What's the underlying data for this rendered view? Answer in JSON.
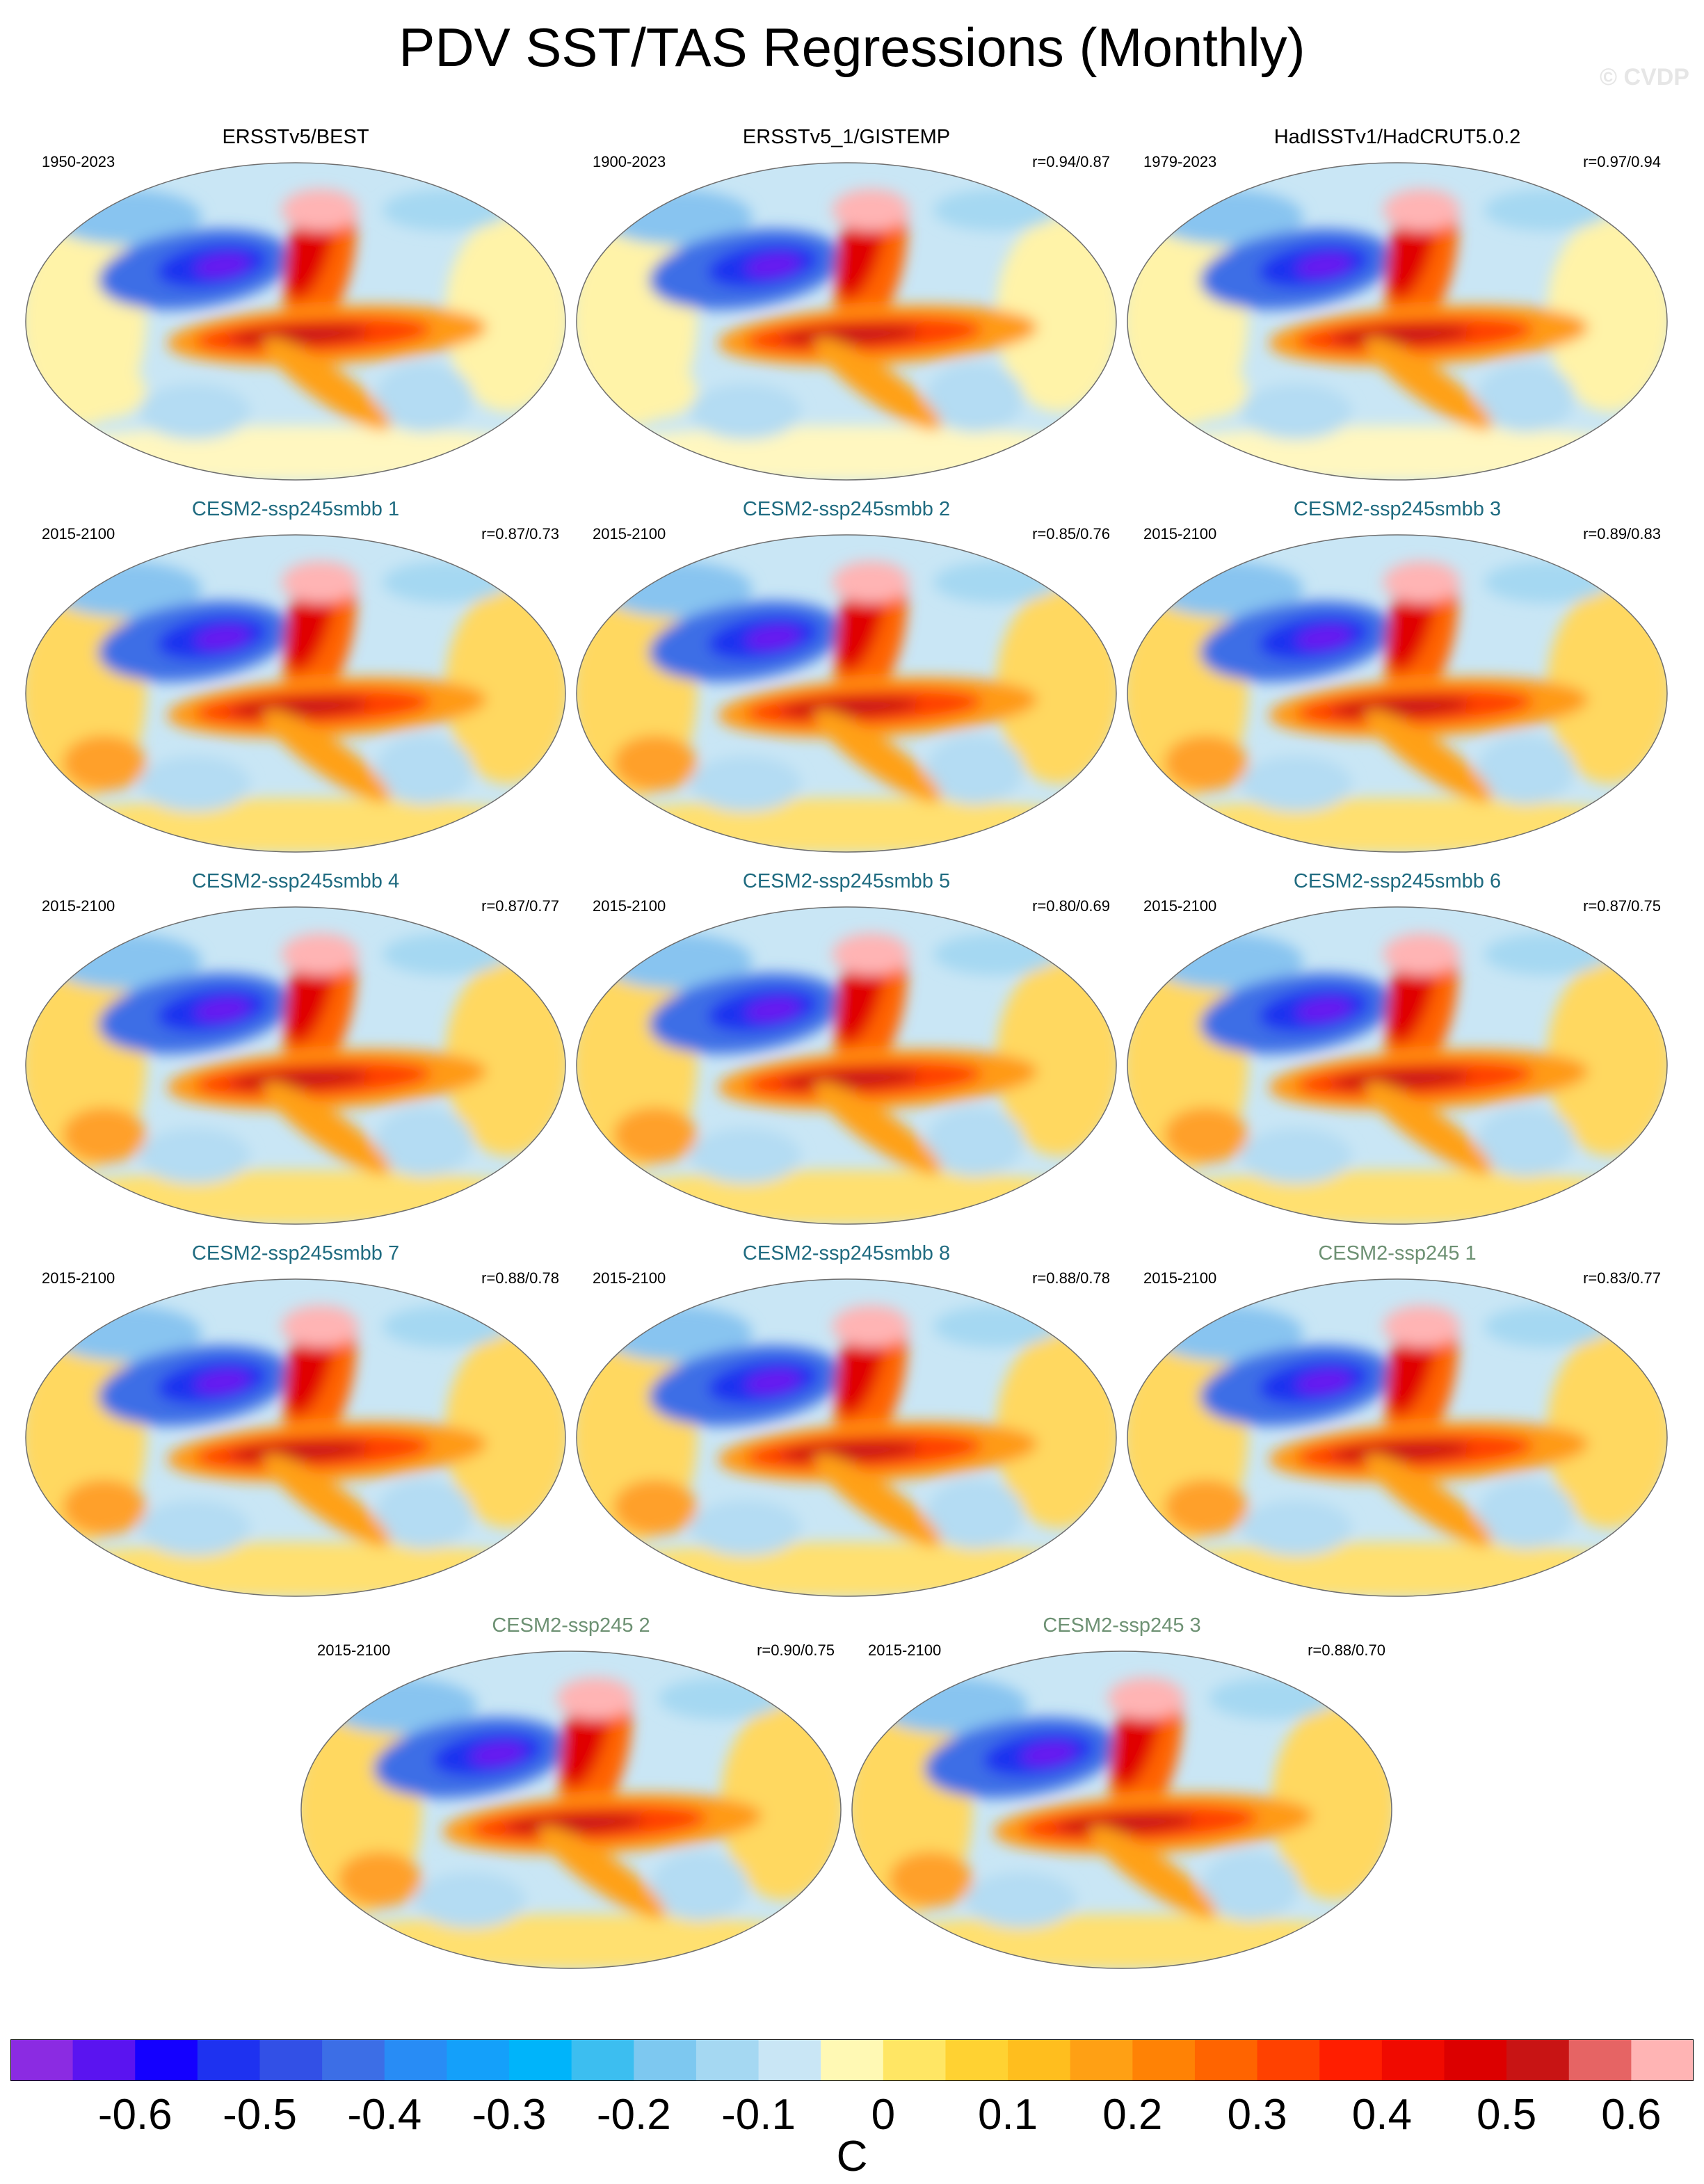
{
  "title": "PDV SST/TAS Regressions (Monthly)",
  "watermark": "© CVDP",
  "colors": {
    "obs_title": "#000000",
    "smbb_title": "#1f6b80",
    "ssp245_title": "#6d9173",
    "land_outline": "#8a8a8a",
    "ocean_base": "#c9e6f5"
  },
  "panels": [
    {
      "title": "ERSSTv5/BEST",
      "period": "1950-2023",
      "corr": "",
      "group": "obs"
    },
    {
      "title": "ERSSTv5_1/GISTEMP",
      "period": "1900-2023",
      "corr": "r=0.94/0.87",
      "group": "obs"
    },
    {
      "title": "HadISSTv1/HadCRUT5.0.2",
      "period": "1979-2023",
      "corr": "r=0.97/0.94",
      "group": "obs"
    },
    {
      "title": "CESM2-ssp245smbb 1",
      "period": "2015-2100",
      "corr": "r=0.87/0.73",
      "group": "smbb"
    },
    {
      "title": "CESM2-ssp245smbb 2",
      "period": "2015-2100",
      "corr": "r=0.85/0.76",
      "group": "smbb"
    },
    {
      "title": "CESM2-ssp245smbb 3",
      "period": "2015-2100",
      "corr": "r=0.89/0.83",
      "group": "smbb"
    },
    {
      "title": "CESM2-ssp245smbb 4",
      "period": "2015-2100",
      "corr": "r=0.87/0.77",
      "group": "smbb"
    },
    {
      "title": "CESM2-ssp245smbb 5",
      "period": "2015-2100",
      "corr": "r=0.80/0.69",
      "group": "smbb"
    },
    {
      "title": "CESM2-ssp245smbb 6",
      "period": "2015-2100",
      "corr": "r=0.87/0.75",
      "group": "smbb"
    },
    {
      "title": "CESM2-ssp245smbb 7",
      "period": "2015-2100",
      "corr": "r=0.88/0.78",
      "group": "smbb"
    },
    {
      "title": "CESM2-ssp245smbb 8",
      "period": "2015-2100",
      "corr": "r=0.88/0.78",
      "group": "smbb"
    },
    {
      "title": "CESM2-ssp245 1",
      "period": "2015-2100",
      "corr": "r=0.83/0.77",
      "group": "ssp245"
    },
    {
      "title": "CESM2-ssp245 2",
      "period": "2015-2100",
      "corr": "r=0.90/0.75",
      "group": "ssp245"
    },
    {
      "title": "CESM2-ssp245 3",
      "period": "2015-2100",
      "corr": "r=0.88/0.70",
      "group": "ssp245"
    }
  ],
  "colorbar": {
    "unit": "C",
    "tick_labels": [
      "-0.6",
      "-0.5",
      "-0.4",
      "-0.3",
      "-0.2",
      "-0.1",
      "0",
      "0.1",
      "0.2",
      "0.3",
      "0.4",
      "0.5",
      "0.6"
    ],
    "colors": [
      "#8b2be2",
      "#5a14f0",
      "#1400ff",
      "#1e32f0",
      "#3250e6",
      "#3c6ee6",
      "#288cf5",
      "#14a0fa",
      "#00b4fa",
      "#3cbef0",
      "#7dc8f0",
      "#a5d8f2",
      "#c9e6f5",
      "#fff9b4",
      "#ffe664",
      "#ffd232",
      "#ffbe1e",
      "#ffa014",
      "#ff8205",
      "#ff6400",
      "#ff4100",
      "#ff1e00",
      "#f00a00",
      "#dc0000",
      "#c81414",
      "#e66464",
      "#ffb4b4"
    ]
  }
}
